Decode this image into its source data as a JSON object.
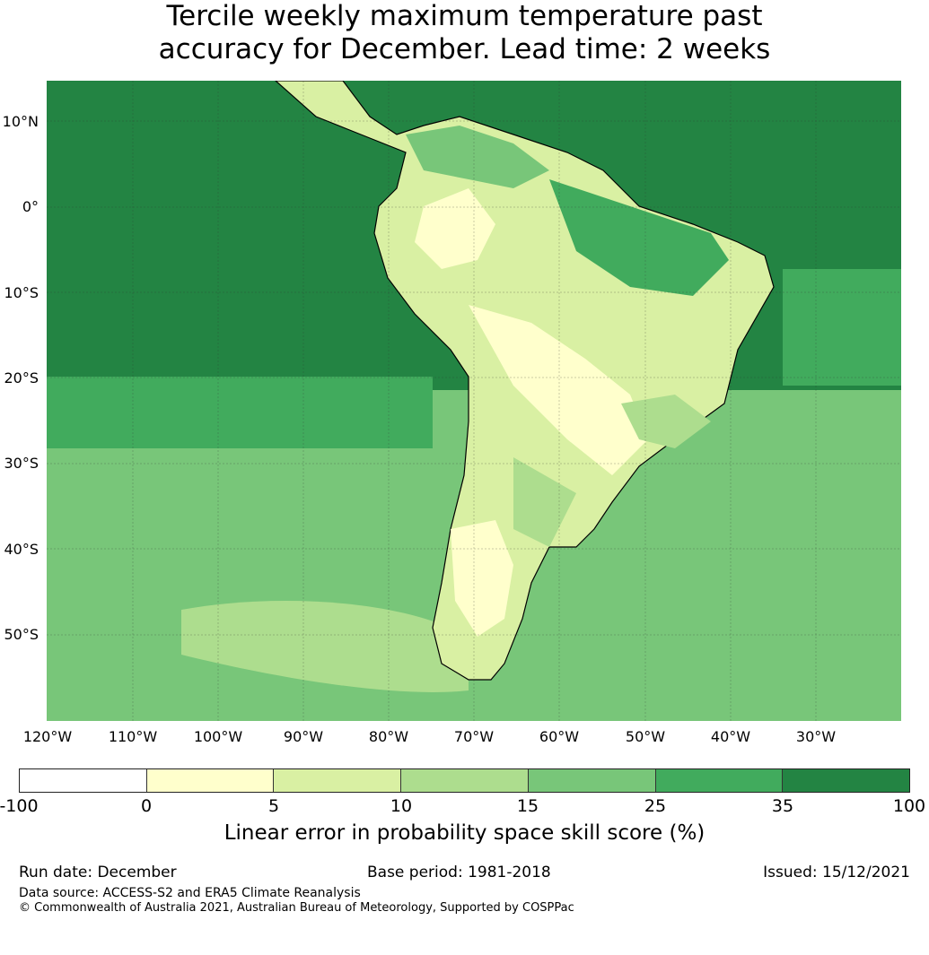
{
  "title": {
    "line1": "Tercile weekly maximum temperature past",
    "line2": "accuracy for December. Lead time: 2 weeks"
  },
  "map": {
    "region": "South America",
    "lat_labels": [
      "10°N",
      "0°",
      "10°S",
      "20°S",
      "30°S",
      "40°S",
      "50°S"
    ],
    "lon_labels": [
      "120°W",
      "110°W",
      "100°W",
      "90°W",
      "80°W",
      "70°W",
      "60°W",
      "50°W",
      "40°W",
      "30°W"
    ]
  },
  "colorbar": {
    "ticks": [
      "-100",
      "0",
      "5",
      "10",
      "15",
      "25",
      "35",
      "100"
    ],
    "colors": [
      "#ffffff",
      "#ffffcc",
      "#d9f0a3",
      "#addd8e",
      "#78c679",
      "#41ab5d",
      "#238443"
    ],
    "label": "Linear error in probability space skill score (%)"
  },
  "footer": {
    "run_date": "Run date: December",
    "base_period": "Base period: 1981-2018",
    "issued": "Issued: 15/12/2021",
    "data_source": "Data source: ACCESS-S2 and ERA5 Climate Reanalysis",
    "copyright": "© Commonwealth of Australia 2021, Australian Bureau of Meteorology, Supported by COSPPac"
  }
}
